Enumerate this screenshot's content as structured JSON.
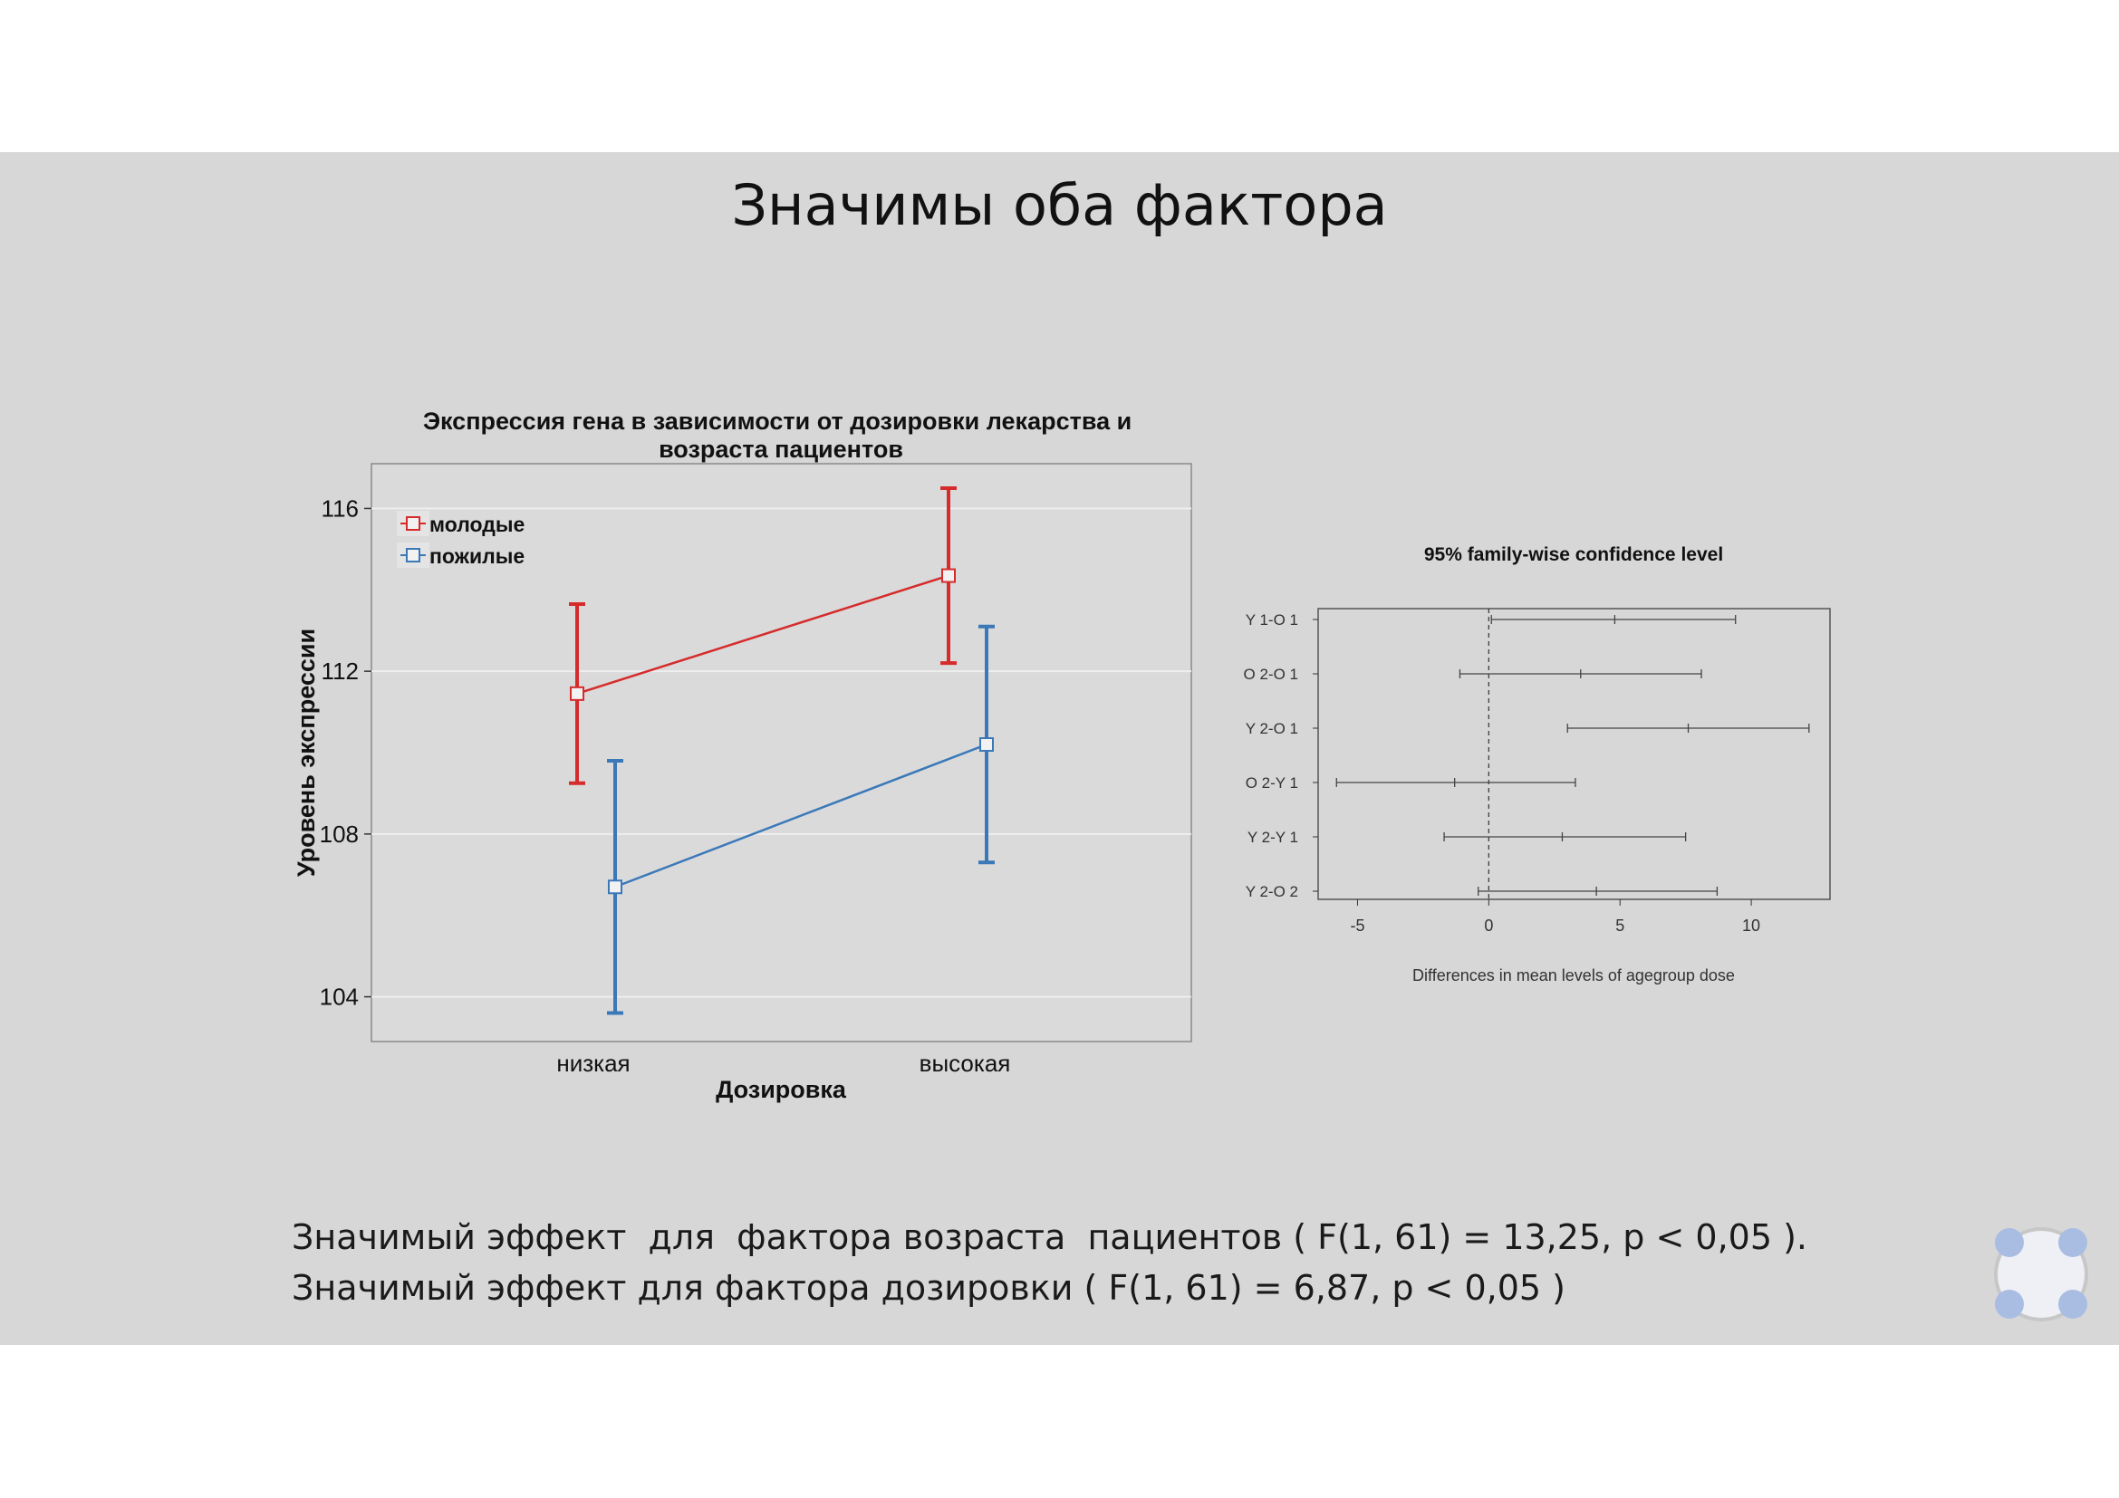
{
  "slide": {
    "title": "Значимы оба фактора",
    "caption_line1": "Значимый эффект  для  фактора возраста  пациентов ( F(1, 61) = 13,25, p < 0,05 ).",
    "caption_line2": "Значимый эффект для фактора дозировки ( F(1, 61) = 6,87, p < 0,05 )"
  },
  "colors": {
    "slide_bg": "#d7d7d8",
    "young": "#d62b2b",
    "old": "#3a78b8",
    "panel_border": "#8a8a8a",
    "nav_dots": "#a9bde3"
  },
  "nav_widget_icon": "slide-navigation-icon",
  "chart_data": [
    {
      "type": "line",
      "title_line1": "Экспрессия гена в зависимости от дозировки лекарства и",
      "title_line2": "возраста пациентов",
      "xlabel": "Дозировка",
      "ylabel": "Уровень экспрессии",
      "categories": [
        "низкая",
        "высокая"
      ],
      "ylim": [
        102.9,
        117.1
      ],
      "yticks": [
        104,
        108,
        112,
        116
      ],
      "grid": true,
      "legend_position": "top-left",
      "series": [
        {
          "name": "молодые",
          "color": "#d62b2b",
          "values": [
            111.45,
            114.35
          ],
          "lower": [
            109.25,
            112.2
          ],
          "upper": [
            113.65,
            116.5
          ]
        },
        {
          "name": "пожилые",
          "color": "#3a78b8",
          "values": [
            106.7,
            110.2
          ],
          "lower": [
            103.6,
            107.3
          ],
          "upper": [
            109.8,
            113.1
          ]
        }
      ]
    },
    {
      "type": "errorbar",
      "title": "95% family-wise confidence level",
      "xlabel": "Differences in mean levels of agegroup dose",
      "xlim": [
        -6.5,
        13
      ],
      "xticks": [
        -5,
        0,
        5,
        10
      ],
      "reference_line": 0,
      "comparisons": [
        {
          "label": "Y 1-O 1",
          "estimate": 4.8,
          "lower": 0.1,
          "upper": 9.4
        },
        {
          "label": "O 2-O 1",
          "estimate": 3.5,
          "lower": -1.1,
          "upper": 8.1
        },
        {
          "label": "Y 2-O 1",
          "estimate": 7.6,
          "lower": 3.0,
          "upper": 12.2
        },
        {
          "label": "O 2-Y 1",
          "estimate": -1.3,
          "lower": -5.8,
          "upper": 3.3
        },
        {
          "label": "Y 2-Y 1",
          "estimate": 2.8,
          "lower": -1.7,
          "upper": 7.5
        },
        {
          "label": "Y 2-O 2",
          "estimate": 4.1,
          "lower": -0.4,
          "upper": 8.7
        }
      ]
    }
  ]
}
